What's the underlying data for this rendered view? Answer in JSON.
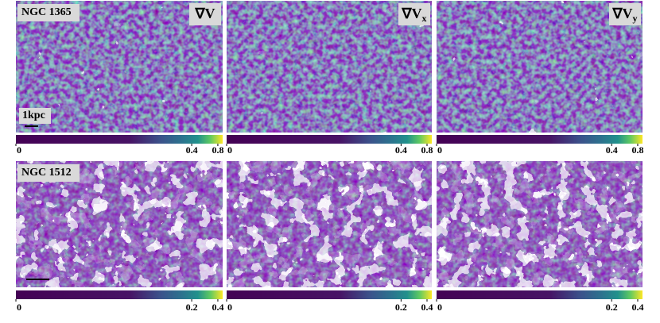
{
  "rows": [
    {
      "galaxy": "NGC 1365",
      "scale_bar": "1kpc",
      "colorbar": {
        "lim": [
          0,
          0.9
        ],
        "norm": "power",
        "gamma": 0.2,
        "ticks": [
          0,
          0.4,
          0.8
        ]
      }
    },
    {
      "galaxy": "NGC 1512",
      "colorbar": {
        "lim": [
          0,
          0.45
        ],
        "norm": "power",
        "gamma": 0.2,
        "ticks": [
          0,
          0.2,
          0.4
        ]
      }
    }
  ],
  "panels": [
    {
      "symbol": "∇V"
    },
    {
      "symbol": "∇V",
      "subscript": "x"
    },
    {
      "symbol": "∇V",
      "subscript": "y"
    }
  ]
}
